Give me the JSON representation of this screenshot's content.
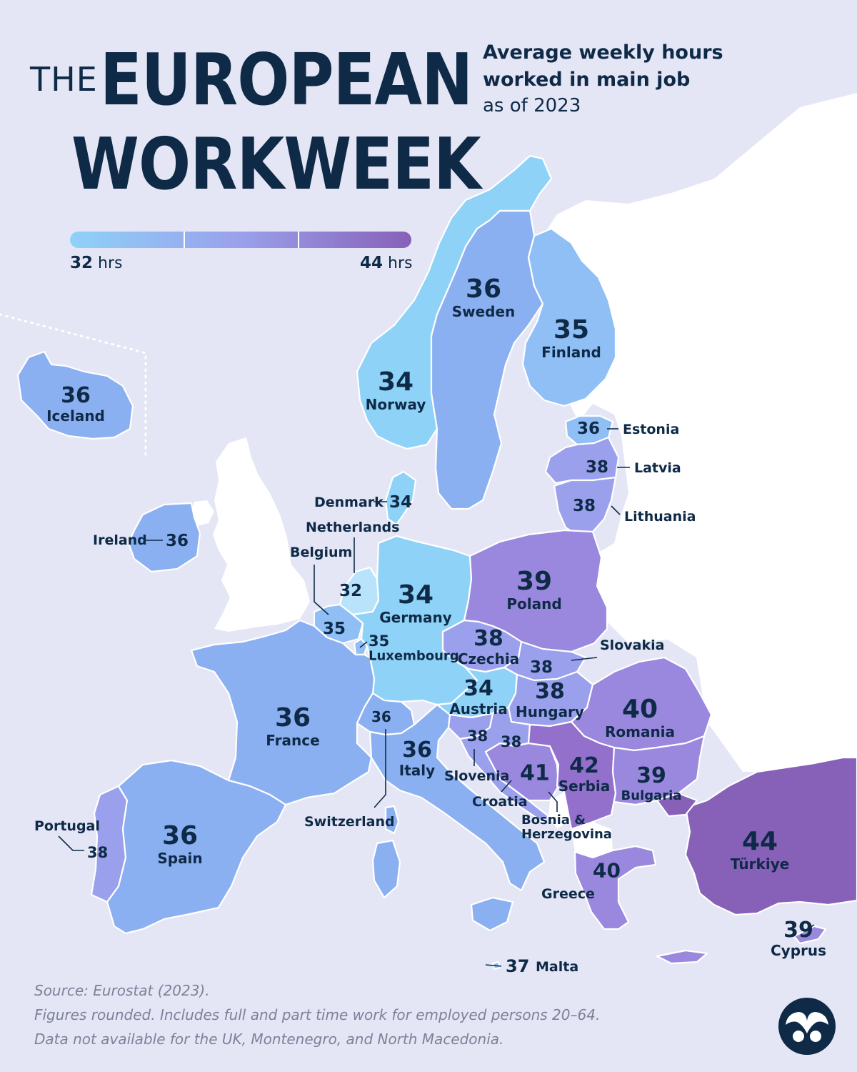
{
  "header": {
    "title_the": "THE",
    "title_line1": "EUROPEAN",
    "title_line2": "WORKWEEK",
    "subtitle_line1": "Average weekly hours",
    "subtitle_line2": "worked in main job",
    "subtitle_note": "as of 2023"
  },
  "legend": {
    "min_value": "32",
    "max_value": "44",
    "unit": "hrs",
    "color_min": "#8fd2f8",
    "color_max": "#8760b8"
  },
  "colors": {
    "background": "#e4e6f5",
    "non_data_land": "#ffffff",
    "text": "#0e2a47",
    "footer_text": "#7d8199"
  },
  "chart_data": {
    "type": "choropleth",
    "title": "THE EUROPEAN WORKWEEK",
    "subtitle": "Average weekly hours worked in main job as of 2023",
    "unit": "hrs",
    "scale_range": [
      32,
      44
    ],
    "countries": [
      {
        "name": "Iceland",
        "value": 36
      },
      {
        "name": "Norway",
        "value": 34
      },
      {
        "name": "Sweden",
        "value": 36
      },
      {
        "name": "Finland",
        "value": 35
      },
      {
        "name": "Estonia",
        "value": 36
      },
      {
        "name": "Latvia",
        "value": 38
      },
      {
        "name": "Lithuania",
        "value": 38
      },
      {
        "name": "Denmark",
        "value": 34
      },
      {
        "name": "Ireland",
        "value": 36
      },
      {
        "name": "Netherlands",
        "value": 32
      },
      {
        "name": "Belgium",
        "value": 35
      },
      {
        "name": "Luxembourg",
        "value": 35
      },
      {
        "name": "Germany",
        "value": 34
      },
      {
        "name": "Poland",
        "value": 39
      },
      {
        "name": "Czechia",
        "value": 38
      },
      {
        "name": "Slovakia",
        "value": 38
      },
      {
        "name": "Austria",
        "value": 34
      },
      {
        "name": "Hungary",
        "value": 38
      },
      {
        "name": "Romania",
        "value": 40
      },
      {
        "name": "France",
        "value": 36
      },
      {
        "name": "Switzerland",
        "value": 36
      },
      {
        "name": "Italy",
        "value": 36
      },
      {
        "name": "Slovenia",
        "value": 38
      },
      {
        "name": "Croatia",
        "value": 38
      },
      {
        "name": "Bosnia & Herzegovina",
        "value": 41
      },
      {
        "name": "Serbia",
        "value": 42
      },
      {
        "name": "Bulgaria",
        "value": 39
      },
      {
        "name": "Portugal",
        "value": 38
      },
      {
        "name": "Spain",
        "value": 36
      },
      {
        "name": "Greece",
        "value": 40
      },
      {
        "name": "Türkiye",
        "value": 44
      },
      {
        "name": "Cyprus",
        "value": 39
      },
      {
        "name": "Malta",
        "value": 37
      }
    ]
  },
  "footer": {
    "source": "Source: Eurostat (2023).",
    "note1": "Figures rounded. Includes full and part time work for employed persons 20–64.",
    "note2": "Data not available for the UK, Montenegro, and North Macedonia."
  },
  "logo": {
    "icon": "visual-capitalist-logo-icon"
  }
}
